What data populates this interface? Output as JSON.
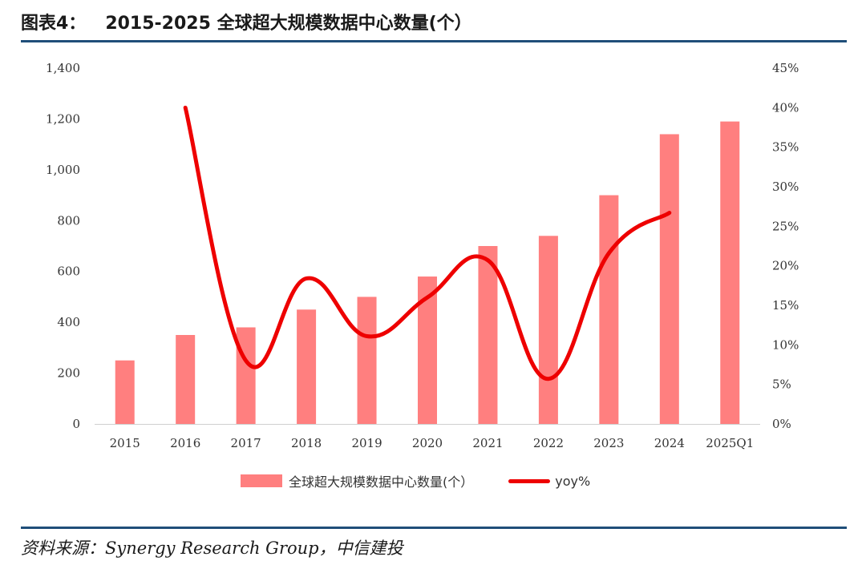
{
  "header": {
    "figure_label": "图表4：",
    "title": "2015-2025 全球超大规模数据中心数量(个）"
  },
  "source": {
    "label": "资料来源：",
    "text": "Synergy Research Group，中信建投"
  },
  "chart_data": {
    "type": "bar",
    "categories": [
      "2015",
      "2016",
      "2017",
      "2018",
      "2019",
      "2020",
      "2021",
      "2022",
      "2023",
      "2024",
      "2025Q1"
    ],
    "series": [
      {
        "name": "全球超大规模数据中心数量(个）",
        "type": "bar",
        "axis": "left",
        "color": "#ff7f7f",
        "values": [
          250,
          350,
          380,
          450,
          500,
          580,
          700,
          740,
          900,
          1140,
          1190
        ]
      },
      {
        "name": "yoy%",
        "type": "line",
        "axis": "right",
        "color": "#ee0000",
        "values": [
          null,
          40,
          8,
          18.4,
          11.1,
          16,
          20.7,
          5.7,
          21.6,
          26.7,
          null
        ]
      }
    ],
    "y_left": {
      "min": 0,
      "max": 1400,
      "ticks": [
        "0",
        "200",
        "400",
        "600",
        "800",
        "1,000",
        "1,200",
        "1,400"
      ]
    },
    "y_right": {
      "min": 0,
      "max": 45,
      "ticks": [
        "0%",
        "5%",
        "10%",
        "15%",
        "20%",
        "25%",
        "30%",
        "35%",
        "40%",
        "45%"
      ]
    },
    "grid": false,
    "legend": "bottom"
  }
}
